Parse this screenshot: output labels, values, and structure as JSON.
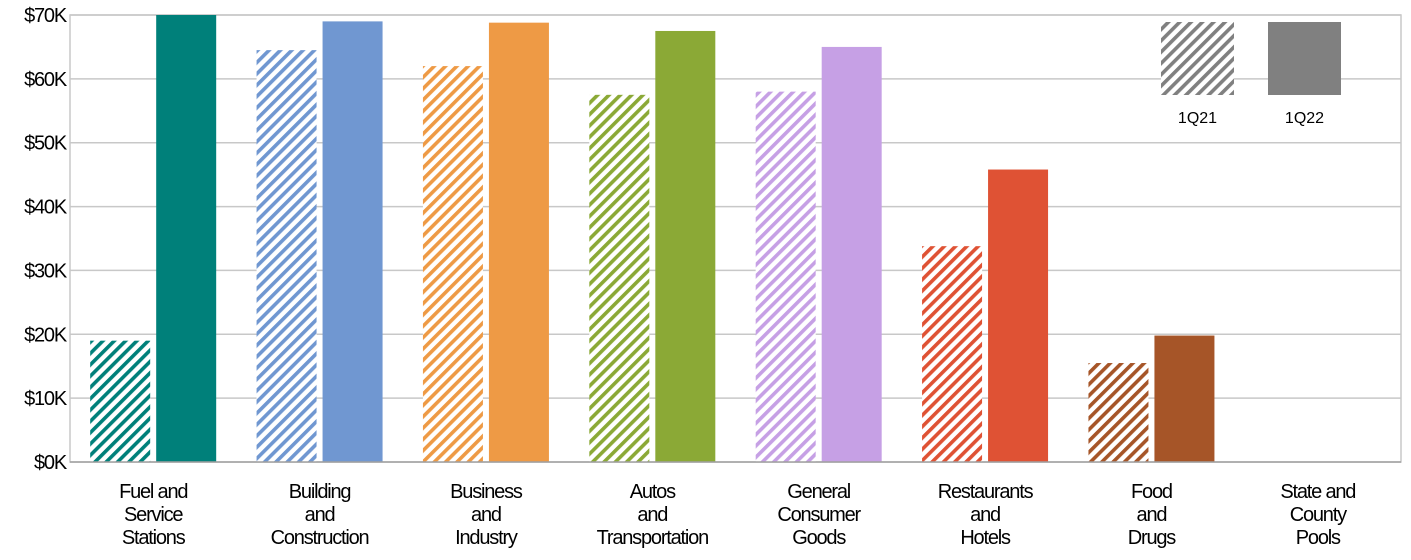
{
  "chart_data": {
    "type": "bar",
    "categories": [
      [
        "Fuel and",
        "Service",
        "Stations"
      ],
      [
        "Building",
        "and",
        "Construction"
      ],
      [
        "Business",
        "and",
        "Industry"
      ],
      [
        "Autos",
        "and",
        "Transportation"
      ],
      [
        "General",
        "Consumer",
        "Goods"
      ],
      [
        "Restaurants",
        "and",
        "Hotels"
      ],
      [
        "Food",
        "and",
        "Drugs"
      ],
      [
        "State and",
        "County",
        "Pools"
      ]
    ],
    "series": [
      {
        "name": "1Q21",
        "style": "hatched",
        "values": [
          19000,
          64500,
          62000,
          57500,
          58000,
          33800,
          15500,
          0
        ]
      },
      {
        "name": "1Q22",
        "style": "solid",
        "values": [
          70000,
          69000,
          68800,
          67500,
          65000,
          45800,
          19800,
          0
        ]
      }
    ],
    "colors": [
      "#00807a",
      "#7097d1",
      "#ee9a45",
      "#8ba936",
      "#c6a0e5",
      "#df5234",
      "#a65528",
      "#a0a0a0"
    ],
    "legend_color": "#808080",
    "ylim": [
      0,
      70000
    ],
    "yticks": [
      0,
      10000,
      20000,
      30000,
      40000,
      50000,
      60000,
      70000
    ],
    "ytick_labels": [
      "$0K",
      "$10K",
      "$20K",
      "$30K",
      "$40K",
      "$50K",
      "$60K",
      "$70K"
    ],
    "grid": true,
    "legend_position": "top-right",
    "title": "",
    "xlabel": "",
    "ylabel": ""
  }
}
